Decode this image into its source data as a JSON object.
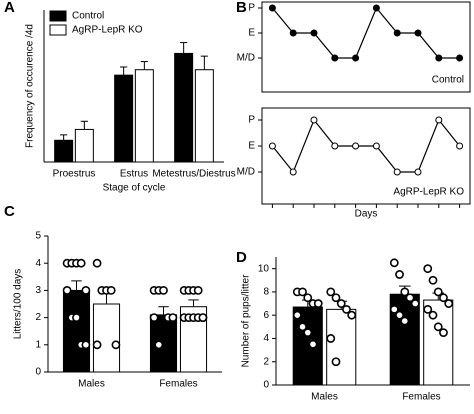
{
  "chart_data": [
    {
      "panel": "A",
      "type": "bar",
      "ylabel": "Frequency of occurence /4d",
      "xlabel": "Stage of cycle",
      "categories": [
        "Proestrus",
        "Estrus",
        "Metestrus/Diestrus"
      ],
      "ylim": [
        0,
        2.8
      ],
      "legend": "top-left",
      "series": [
        {
          "name": "Control",
          "color": "#000000",
          "values": [
            0.4,
            1.6,
            2.0
          ],
          "errors": [
            0.1,
            0.15,
            0.2
          ]
        },
        {
          "name": "AgRP-LepR KO",
          "color": "#ffffff",
          "values": [
            0.6,
            1.7,
            1.7
          ],
          "errors": [
            0.15,
            0.15,
            0.25
          ]
        }
      ]
    },
    {
      "panel": "B",
      "type": "line",
      "x": [
        1,
        2,
        3,
        4,
        5,
        6,
        7,
        8,
        9,
        10
      ],
      "xlim": [
        0.5,
        10.5
      ],
      "ylim": [
        1,
        3
      ],
      "yticks": [
        {
          "value": 3,
          "label": "P"
        },
        {
          "value": 2,
          "label": "E"
        },
        {
          "value": 1,
          "label": "M/D"
        }
      ],
      "legend": "bottom-right",
      "series": [
        {
          "name": "Control",
          "color": "#000000",
          "values": [
            3,
            2,
            2,
            1,
            1,
            3,
            2,
            2,
            1,
            1
          ]
        }
      ]
    },
    {
      "type": "line",
      "xlabel": "Days",
      "x": [
        1,
        2,
        3,
        4,
        5,
        6,
        7,
        8,
        9,
        10
      ],
      "xlim": [
        0.5,
        10.5
      ],
      "ylim": [
        1,
        3
      ],
      "yticks": [
        {
          "value": 3,
          "label": "P"
        },
        {
          "value": 2,
          "label": "E"
        },
        {
          "value": 1,
          "label": "M/D"
        }
      ],
      "legend": "bottom-right",
      "series": [
        {
          "name": "AgRP-LepR KO",
          "color": "#ffffff",
          "values": [
            2,
            1,
            3,
            2,
            2,
            2,
            1,
            1,
            3,
            2
          ]
        }
      ]
    },
    {
      "panel": "C",
      "type": "bar",
      "ylabel": "Litters/100 days",
      "categories": [
        "Males",
        "Females"
      ],
      "ylim": [
        0,
        5
      ],
      "yticks": [
        0,
        1,
        2,
        3,
        4,
        5
      ],
      "series": [
        {
          "color": "#000000",
          "values": [
            3.0,
            2.1
          ],
          "errors": [
            0.35,
            0.3
          ],
          "points": [
            [
              4,
              4,
              4,
              4,
              3,
              3,
              2,
              2,
              1,
              1
            ],
            [
              3,
              3,
              3,
              2,
              2,
              2,
              1
            ]
          ]
        },
        {
          "color": "#ffffff",
          "values": [
            2.5,
            2.4
          ],
          "errors": [
            0.5,
            0.25
          ],
          "points": [
            [
              4,
              3,
              3,
              3,
              1,
              1
            ],
            [
              3,
              3,
              3,
              3,
              2,
              2,
              2,
              2,
              2,
              2
            ]
          ]
        }
      ]
    },
    {
      "panel": "D",
      "type": "bar",
      "ylabel": "Number of pups/litter",
      "categories": [
        "Males",
        "Females"
      ],
      "ylim": [
        0,
        11
      ],
      "yticks": [
        0,
        2,
        4,
        6,
        8,
        10
      ],
      "series": [
        {
          "color": "#000000",
          "values": [
            6.7,
            7.8
          ],
          "errors": [
            0.6,
            0.7
          ],
          "points": [
            [
              8,
              8,
              7.5,
              7,
              7,
              6,
              5,
              4.5,
              3.5
            ],
            [
              10.5,
              9.5,
              8,
              7.5,
              7,
              6.5,
              6,
              5.5
            ]
          ]
        },
        {
          "color": "#ffffff",
          "values": [
            6.5,
            7.3
          ],
          "errors": [
            0.7,
            0.6
          ],
          "points": [
            [
              8,
              7.5,
              7,
              6.5,
              6,
              4,
              2
            ],
            [
              10,
              9,
              8,
              7.5,
              7,
              6.5,
              6,
              5,
              4.5
            ]
          ]
        }
      ]
    }
  ]
}
